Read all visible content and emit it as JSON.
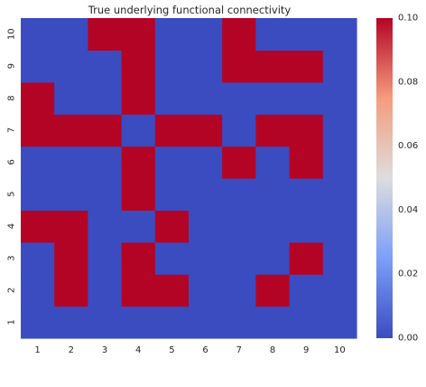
{
  "chart_data": {
    "type": "heatmap",
    "title": "True underlying functional connectivity",
    "x_tick_labels": [
      "1",
      "2",
      "3",
      "4",
      "5",
      "6",
      "7",
      "8",
      "9",
      "10"
    ],
    "y_tick_labels": [
      "1",
      "2",
      "3",
      "4",
      "5",
      "6",
      "7",
      "8",
      "9",
      "10"
    ],
    "matrix_rows_bottom_to_top": [
      [
        0,
        0,
        0,
        0,
        0,
        0,
        0,
        0,
        0,
        0
      ],
      [
        0,
        0.1,
        0,
        0.1,
        0.1,
        0,
        0,
        0.1,
        0,
        0
      ],
      [
        0,
        0.1,
        0,
        0.1,
        0,
        0,
        0,
        0,
        0.1,
        0
      ],
      [
        0.1,
        0.1,
        0,
        0,
        0.1,
        0,
        0,
        0,
        0,
        0
      ],
      [
        0,
        0,
        0,
        0.1,
        0,
        0,
        0,
        0,
        0,
        0
      ],
      [
        0,
        0,
        0,
        0.1,
        0,
        0,
        0.1,
        0,
        0.1,
        0
      ],
      [
        0.1,
        0.1,
        0.1,
        0,
        0.1,
        0.1,
        0,
        0.1,
        0.1,
        0
      ],
      [
        0.1,
        0,
        0,
        0.1,
        0,
        0,
        0,
        0,
        0,
        0
      ],
      [
        0,
        0,
        0,
        0.1,
        0,
        0,
        0.1,
        0.1,
        0.1,
        0
      ],
      [
        0,
        0,
        0.1,
        0.1,
        0,
        0,
        0.1,
        0,
        0,
        0
      ]
    ],
    "colorbar": {
      "colormap": "coolwarm",
      "range": [
        0.0,
        0.1
      ],
      "tick_values": [
        0.0,
        0.02,
        0.04,
        0.06,
        0.08,
        0.1
      ],
      "tick_labels": [
        "0.00",
        "0.02",
        "0.04",
        "0.06",
        "0.08",
        "0.10"
      ]
    },
    "colors": {
      "low": "#3b4cc0",
      "high": "#b40426"
    }
  }
}
